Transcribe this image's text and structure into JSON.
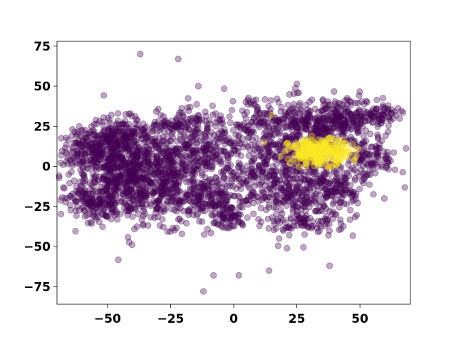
{
  "chart_data": {
    "type": "scatter",
    "title": "",
    "xlabel": "",
    "ylabel": "",
    "xlim": [
      -70,
      70
    ],
    "ylim": [
      -86,
      78
    ],
    "x_ticks": [
      -50,
      -25,
      0,
      25,
      50
    ],
    "y_ticks": [
      -75,
      -50,
      -25,
      0,
      25,
      50,
      75
    ],
    "x_tick_labels": [
      "−50",
      "−25",
      "0",
      "25",
      "50"
    ],
    "y_tick_labels": [
      "−75",
      "−50",
      "−25",
      "0",
      "25",
      "50",
      "75"
    ],
    "point_alpha": 0.35,
    "colors": {
      "class_0": "#440154",
      "class_1": "#fde725"
    },
    "series": [
      {
        "class": 0,
        "color": "#440154",
        "clusters": [
          {
            "center": [
              -58,
              10
            ],
            "spread": [
              5,
              6
            ],
            "count": 120
          },
          {
            "center": [
              -48,
              5
            ],
            "spread": [
              8,
              12
            ],
            "count": 300
          },
          {
            "center": [
              -40,
              -10
            ],
            "spread": [
              10,
              12
            ],
            "count": 360
          },
          {
            "center": [
              -55,
              -22
            ],
            "spread": [
              6,
              6
            ],
            "count": 150
          },
          {
            "center": [
              -45,
              20
            ],
            "spread": [
              6,
              4
            ],
            "count": 110
          },
          {
            "center": [
              -25,
              -5
            ],
            "spread": [
              12,
              15
            ],
            "count": 450
          },
          {
            "center": [
              -15,
              10
            ],
            "spread": [
              8,
              8
            ],
            "count": 160
          },
          {
            "center": [
              -10,
              -20
            ],
            "spread": [
              7,
              6
            ],
            "count": 140
          },
          {
            "center": [
              -25,
              25
            ],
            "spread": [
              4,
              2
            ],
            "count": 45
          },
          {
            "center": [
              -15,
              30
            ],
            "spread": [
              6,
              5
            ],
            "count": 60
          },
          {
            "center": [
              -3,
              -32
            ],
            "spread": [
              4,
              4
            ],
            "count": 60
          },
          {
            "center": [
              5,
              25
            ],
            "spread": [
              3,
              3
            ],
            "count": 25
          },
          {
            "center": [
              7,
              36
            ],
            "spread": [
              3,
              3
            ],
            "count": 20
          },
          {
            "center": [
              20,
              -5
            ],
            "spread": [
              12,
              15
            ],
            "count": 600
          },
          {
            "center": [
              28,
              -35
            ],
            "spread": [
              6,
              4
            ],
            "count": 70
          },
          {
            "center": [
              30,
              25
            ],
            "spread": [
              12,
              8
            ],
            "count": 380
          },
          {
            "center": [
              45,
              30
            ],
            "spread": [
              6,
              6
            ],
            "count": 120
          },
          {
            "center": [
              58,
              32
            ],
            "spread": [
              4,
              3
            ],
            "count": 60
          },
          {
            "center": [
              55,
              5
            ],
            "spread": [
              5,
              6
            ],
            "count": 100
          },
          {
            "center": [
              40,
              -15
            ],
            "spread": [
              6,
              10
            ],
            "count": 120
          }
        ],
        "points": [
          [
            -37,
            70
          ],
          [
            -22,
            67
          ],
          [
            -14,
            50
          ],
          [
            -8,
            -68
          ],
          [
            2,
            -68
          ],
          [
            -12,
            -78
          ],
          [
            14,
            -65
          ],
          [
            38,
            -62
          ],
          [
            18,
            -45
          ],
          [
            15,
            31
          ]
        ]
      },
      {
        "class": 1,
        "color": "#fde725",
        "clusters": [
          {
            "center": [
              34,
              9
            ],
            "spread": [
              6,
              4
            ],
            "count": 300
          }
        ],
        "points": [
          [
            15,
            32
          ],
          [
            12,
            15
          ]
        ]
      }
    ]
  }
}
